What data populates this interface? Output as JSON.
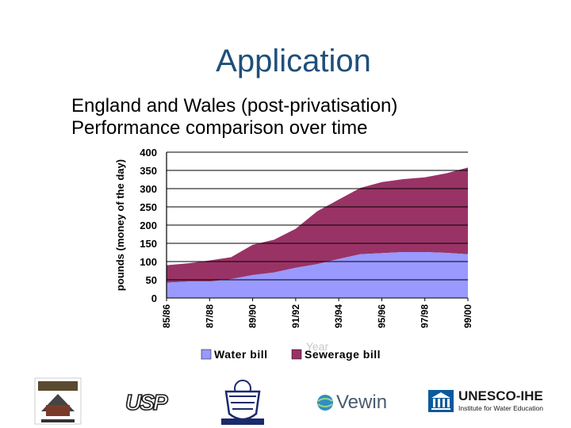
{
  "slide": {
    "title": "Application",
    "bullets": [
      "England and Wales (post-privatisation)",
      "Performance comparison over time"
    ]
  },
  "logos": {
    "usp": "USP",
    "vewin": "Vewin",
    "unesco_name": "UNESCO-IHE",
    "unesco_sub": "Institute for Water Education"
  },
  "colors": {
    "title": "#1f4f7a",
    "water": "#9999ff",
    "sewerage": "#993366"
  },
  "chart_data": {
    "type": "area",
    "stacked": true,
    "ylabel": "pounds (money of the day)",
    "xlabel": "Year",
    "ylim": [
      0,
      400
    ],
    "yticks": [
      0,
      50,
      100,
      150,
      200,
      250,
      300,
      350,
      400
    ],
    "x": [
      "85/86",
      "86/87",
      "87/88",
      "88/89",
      "89/90",
      "90/91",
      "91/92",
      "92/93",
      "93/94",
      "94/95",
      "95/96",
      "96/97",
      "97/98",
      "98/99",
      "99/00"
    ],
    "xtick_labels": [
      "85/86",
      "87/88",
      "89/90",
      "91/92",
      "93/94",
      "95/96",
      "97/98",
      "99/00"
    ],
    "series": [
      {
        "name": "Water bill",
        "color": "#9999ff",
        "values": [
          42,
          45,
          45,
          52,
          63,
          70,
          83,
          93,
          107,
          120,
          123,
          126,
          126,
          124,
          120
        ]
      },
      {
        "name": "Sewerage bill",
        "color": "#993366",
        "values": [
          48,
          50,
          58,
          60,
          83,
          90,
          107,
          145,
          163,
          182,
          195,
          200,
          205,
          218,
          238
        ]
      }
    ],
    "legend": "bottom",
    "grid": true
  }
}
